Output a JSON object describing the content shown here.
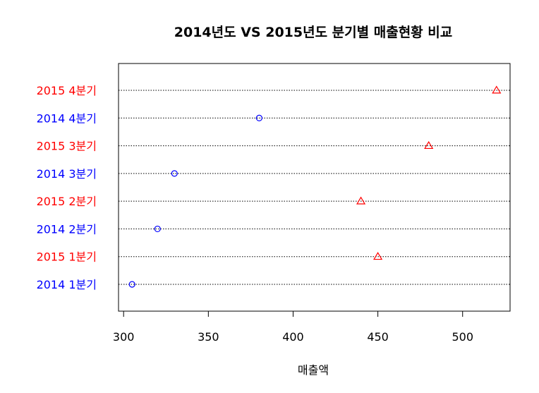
{
  "chart_data": {
    "type": "scatter",
    "subtype": "dotchart",
    "title": "2014년도 VS 2015년도 분기별 매출현황 비교",
    "xlabel": "매출액",
    "ylabel": "",
    "xlim": [
      297,
      528
    ],
    "xticks": [
      300,
      350,
      400,
      450,
      500
    ],
    "grid": "horizontal dotted lines at each category",
    "legend": "none",
    "categories": [
      "2014 1분기",
      "2015 1분기",
      "2014 2분기",
      "2015 2분기",
      "2014 3분기",
      "2015 3분기",
      "2014 4분기",
      "2015 4분기"
    ],
    "values": [
      305,
      450,
      320,
      440,
      330,
      480,
      380,
      520
    ],
    "series_of_point": [
      "2014",
      "2015",
      "2014",
      "2015",
      "2014",
      "2015",
      "2014",
      "2015"
    ],
    "colors": {
      "2014": "#0000ff",
      "2015": "#ff0000"
    },
    "markers": {
      "2014": "circle",
      "2015": "triangle"
    }
  }
}
